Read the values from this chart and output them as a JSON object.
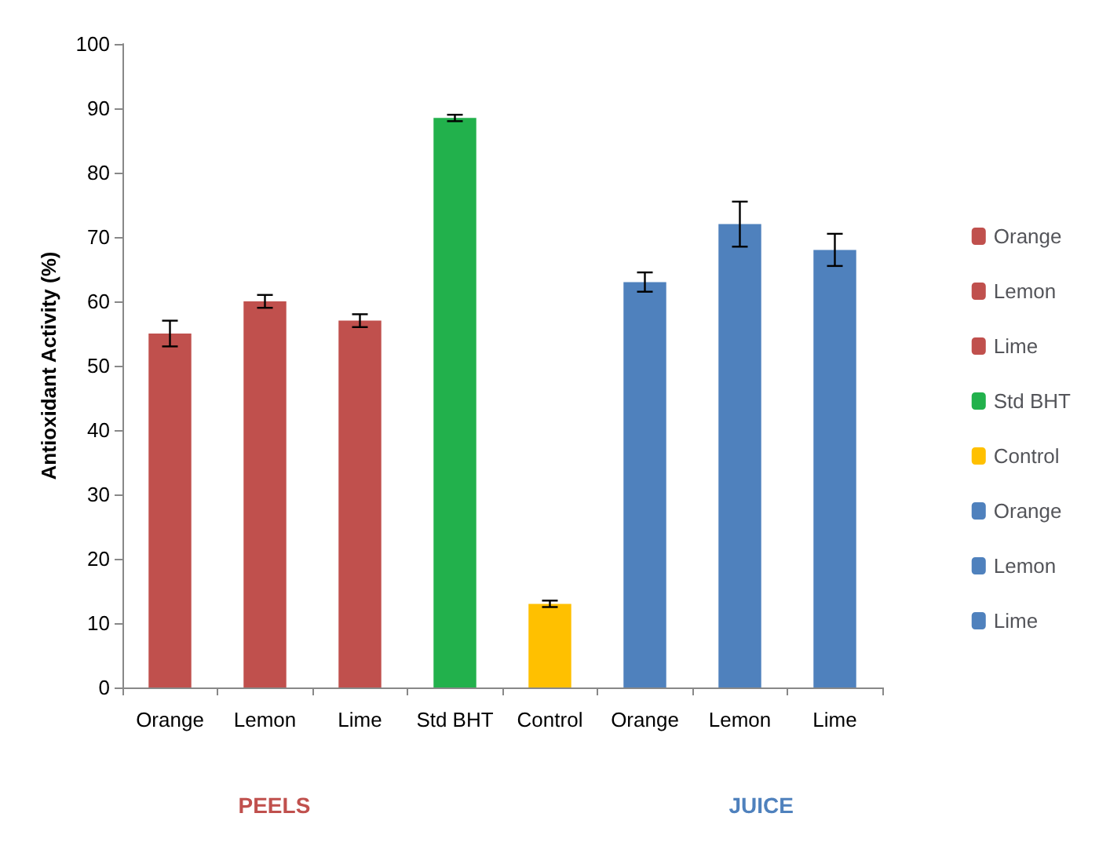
{
  "chart_data": {
    "type": "bar",
    "ylabel": "Antioxidant Activity (%)",
    "categories": [
      "Orange",
      "Lemon",
      "Lime",
      "Std BHT",
      "Control",
      "Orange",
      "Lemon",
      "Lime"
    ],
    "series": [
      {
        "name": "Orange",
        "color": "#c0504d",
        "values": [
          55,
          null,
          null,
          null,
          null,
          null,
          null,
          null
        ],
        "errors": [
          2,
          null,
          null,
          null,
          null,
          null,
          null,
          null
        ]
      },
      {
        "name": "Lemon",
        "color": "#c0504d",
        "values": [
          null,
          60,
          null,
          null,
          null,
          null,
          null,
          null
        ],
        "errors": [
          null,
          1,
          null,
          null,
          null,
          null,
          null,
          null
        ]
      },
      {
        "name": "Lime",
        "color": "#c0504d",
        "values": [
          null,
          null,
          57,
          null,
          null,
          null,
          null,
          null
        ],
        "errors": [
          null,
          null,
          1,
          null,
          null,
          null,
          null,
          null
        ]
      },
      {
        "name": "Std BHT",
        "color": "#22b14c",
        "values": [
          null,
          null,
          null,
          88.5,
          null,
          null,
          null,
          null
        ],
        "errors": [
          null,
          null,
          null,
          0.5,
          null,
          null,
          null,
          null
        ]
      },
      {
        "name": "Control",
        "color": "#ffc000",
        "values": [
          null,
          null,
          null,
          null,
          13,
          null,
          null,
          null
        ],
        "errors": [
          null,
          null,
          null,
          null,
          0.5,
          null,
          null,
          null
        ]
      },
      {
        "name": "Orange",
        "color": "#4f81bd",
        "values": [
          null,
          null,
          null,
          null,
          null,
          63,
          null,
          null
        ],
        "errors": [
          null,
          null,
          null,
          null,
          null,
          1.5,
          null,
          null
        ]
      },
      {
        "name": "Lemon",
        "color": "#4f81bd",
        "values": [
          null,
          null,
          null,
          null,
          null,
          null,
          72,
          null
        ],
        "errors": [
          null,
          null,
          null,
          null,
          null,
          null,
          3.5,
          null
        ]
      },
      {
        "name": "Lime",
        "color": "#4f81bd",
        "values": [
          null,
          null,
          null,
          null,
          null,
          null,
          null,
          68
        ],
        "errors": [
          null,
          null,
          null,
          null,
          null,
          null,
          null,
          2.5
        ]
      }
    ],
    "ylim": [
      0,
      100
    ],
    "yticks": [
      0,
      10,
      20,
      30,
      40,
      50,
      60,
      70,
      80,
      90,
      100
    ],
    "grid": false,
    "legend": "right",
    "annotations": [
      "PEELS",
      "JUICE"
    ]
  }
}
